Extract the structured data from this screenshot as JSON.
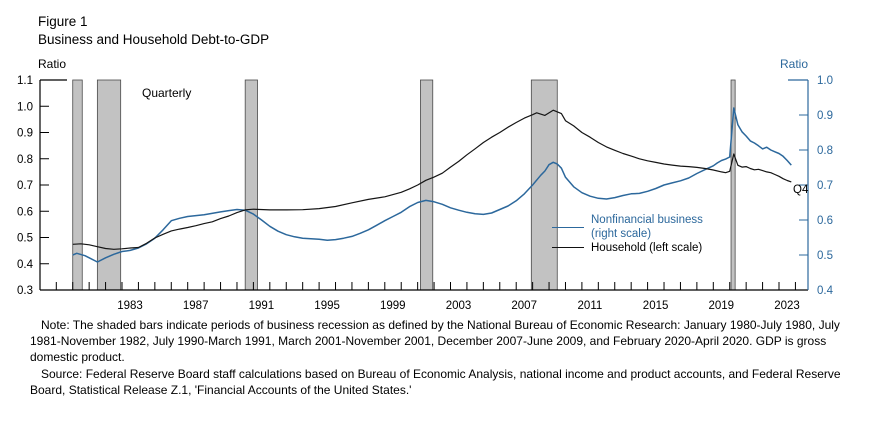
{
  "header": {
    "figure_label": "Figure 1",
    "title": "Business and Household Debt-to-GDP"
  },
  "axes": {
    "left_unit": "Ratio",
    "right_unit": "Ratio"
  },
  "annotations": {
    "frequency": "Quarterly",
    "end_point": "Q4"
  },
  "legend": {
    "business_line1": "Nonfinancial business",
    "business_line2": "(right scale)",
    "household": "Household (left scale)"
  },
  "footnotes": {
    "note": "Note: The shaded bars indicate periods of business recession as defined by the National Bureau of Economic Research: January 1980-July 1980, July 1981-November 1982, July 1990-March 1991, March 2001-November 2001, December 2007-June 2009, and February 2020-April 2020. GDP is gross domestic product.",
    "source": "Source: Federal Reserve Board staff calculations based on Bureau of Economic Analysis, national income and product accounts, and Federal Reserve Board, Statistical Release Z.1, 'Financial Accounts of the United States.'"
  },
  "colors": {
    "business_blue": "#2c689c",
    "household_black": "#151515",
    "recession_fill": "#c2c2c2",
    "recession_edge": "#4a4a4a",
    "axis_black": "#000000"
  },
  "chart_data": {
    "type": "line",
    "title": "Figure 1: Business and Household Debt-to-GDP",
    "frequency": "Quarterly",
    "grid": false,
    "legend_position": "inside-right",
    "left_axis": {
      "label": "Ratio",
      "min": 0.3,
      "max": 1.1,
      "tick_labels": [
        "1.1",
        "1.0",
        "0.9",
        "0.8",
        "0.7",
        "0.6",
        "0.5",
        "0.4",
        "0.3"
      ]
    },
    "right_axis": {
      "label": "Ratio",
      "min": 0.4,
      "max": 1.0,
      "tick_labels": [
        "1.0",
        "0.9",
        "0.8",
        "0.7",
        "0.6",
        "0.5",
        "0.4"
      ]
    },
    "x_axis": {
      "label_years": [
        "1983",
        "1987",
        "1991",
        "1995",
        "1999",
        "2003",
        "2007",
        "2011",
        "2015",
        "2019",
        "2023"
      ],
      "tick_start": 1978,
      "tick_end": 2024,
      "tick_step": 1
    },
    "recessions": [
      {
        "name": "Jan 1980 - Jul 1980",
        "start": 1980.0,
        "end": 1980.58
      },
      {
        "name": "Jul 1981 - Nov 1982",
        "start": 1981.5,
        "end": 1982.92
      },
      {
        "name": "Jul 1990 - Mar 1991",
        "start": 1990.5,
        "end": 1991.25
      },
      {
        "name": "Mar 2001 - Nov 2001",
        "start": 2001.17,
        "end": 2001.92
      },
      {
        "name": "Dec 2007 - Jun 2009",
        "start": 2007.92,
        "end": 2009.5
      },
      {
        "name": "Feb 2020 - Apr 2020",
        "start": 2020.08,
        "end": 2020.33
      }
    ],
    "series": [
      {
        "name": "Nonfinancial business (right scale)",
        "scale": "right",
        "color": "#2c689c",
        "x": [
          1980.0,
          1980.25,
          1980.75,
          1981.0,
          1981.5,
          1982.0,
          1982.5,
          1983.0,
          1983.5,
          1984.0,
          1984.5,
          1985.0,
          1985.5,
          1986.0,
          1986.5,
          1987.0,
          1988.0,
          1989.0,
          1989.5,
          1990.0,
          1990.5,
          1991.0,
          1991.5,
          1992.0,
          1992.5,
          1993.0,
          1993.5,
          1994.0,
          1995.0,
          1995.5,
          1996.0,
          1996.5,
          1997.0,
          1997.5,
          1998.0,
          1998.5,
          1999.0,
          1999.5,
          2000.0,
          2000.5,
          2001.0,
          2001.5,
          2002.0,
          2002.5,
          2003.0,
          2003.5,
          2004.0,
          2004.5,
          2005.0,
          2005.5,
          2006.0,
          2006.5,
          2007.0,
          2007.5,
          2008.0,
          2008.5,
          2008.75,
          2009.0,
          2009.25,
          2009.5,
          2009.75,
          2010.0,
          2010.5,
          2011.0,
          2011.5,
          2012.0,
          2012.5,
          2013.0,
          2013.5,
          2014.0,
          2014.5,
          2015.0,
          2015.5,
          2016.0,
          2016.5,
          2017.0,
          2017.5,
          2018.0,
          2018.5,
          2019.0,
          2019.25,
          2019.5,
          2019.75,
          2020.0,
          2020.25,
          2020.5,
          2020.75,
          2021.0,
          2021.25,
          2021.5,
          2021.75,
          2022.0,
          2022.25,
          2022.5,
          2022.75,
          2023.0,
          2023.25,
          2023.5,
          2023.75
        ],
        "values": [
          0.5,
          0.505,
          0.498,
          0.492,
          0.48,
          0.492,
          0.502,
          0.51,
          0.513,
          0.52,
          0.532,
          0.548,
          0.572,
          0.598,
          0.605,
          0.61,
          0.615,
          0.623,
          0.627,
          0.63,
          0.628,
          0.617,
          0.6,
          0.582,
          0.568,
          0.558,
          0.552,
          0.548,
          0.545,
          0.542,
          0.544,
          0.548,
          0.553,
          0.562,
          0.572,
          0.585,
          0.598,
          0.61,
          0.622,
          0.638,
          0.65,
          0.656,
          0.652,
          0.645,
          0.635,
          0.628,
          0.622,
          0.618,
          0.616,
          0.62,
          0.63,
          0.64,
          0.655,
          0.675,
          0.7,
          0.728,
          0.74,
          0.758,
          0.765,
          0.76,
          0.748,
          0.722,
          0.695,
          0.678,
          0.668,
          0.662,
          0.66,
          0.664,
          0.67,
          0.675,
          0.676,
          0.682,
          0.69,
          0.7,
          0.706,
          0.712,
          0.72,
          0.733,
          0.744,
          0.755,
          0.763,
          0.77,
          0.774,
          0.78,
          0.92,
          0.872,
          0.852,
          0.84,
          0.826,
          0.82,
          0.812,
          0.803,
          0.808,
          0.8,
          0.795,
          0.79,
          0.782,
          0.77,
          0.757
        ]
      },
      {
        "name": "Household (left scale)",
        "scale": "left",
        "color": "#151515",
        "x": [
          1980.0,
          1980.5,
          1981.0,
          1981.5,
          1982.0,
          1982.5,
          1983.0,
          1983.5,
          1984.0,
          1984.5,
          1985.0,
          1985.5,
          1986.0,
          1986.5,
          1987.0,
          1987.5,
          1988.0,
          1988.5,
          1989.0,
          1989.5,
          1990.0,
          1990.5,
          1991.0,
          1992.0,
          1993.0,
          1994.0,
          1995.0,
          1996.0,
          1997.0,
          1998.0,
          1999.0,
          2000.0,
          2000.5,
          2001.0,
          2001.5,
          2002.0,
          2002.5,
          2003.0,
          2003.5,
          2004.0,
          2004.5,
          2005.0,
          2005.5,
          2006.0,
          2006.5,
          2007.0,
          2007.5,
          2008.0,
          2008.25,
          2008.75,
          2009.25,
          2009.75,
          2010.0,
          2010.5,
          2011.0,
          2011.5,
          2012.0,
          2012.5,
          2013.0,
          2013.5,
          2014.0,
          2014.5,
          2015.0,
          2015.5,
          2016.0,
          2016.5,
          2017.0,
          2017.5,
          2018.0,
          2018.5,
          2019.0,
          2019.5,
          2019.75,
          2020.0,
          2020.25,
          2020.5,
          2020.75,
          2021.0,
          2021.25,
          2021.5,
          2021.75,
          2022.0,
          2022.25,
          2022.5,
          2022.75,
          2023.0,
          2023.25,
          2023.5,
          2023.75
        ],
        "values": [
          0.474,
          0.476,
          0.472,
          0.465,
          0.458,
          0.455,
          0.457,
          0.46,
          0.462,
          0.478,
          0.498,
          0.512,
          0.525,
          0.532,
          0.538,
          0.545,
          0.553,
          0.56,
          0.572,
          0.582,
          0.595,
          0.605,
          0.608,
          0.605,
          0.605,
          0.606,
          0.61,
          0.618,
          0.632,
          0.645,
          0.655,
          0.672,
          0.685,
          0.7,
          0.718,
          0.73,
          0.745,
          0.768,
          0.79,
          0.815,
          0.838,
          0.862,
          0.882,
          0.9,
          0.92,
          0.938,
          0.955,
          0.968,
          0.975,
          0.965,
          0.985,
          0.972,
          0.945,
          0.925,
          0.9,
          0.882,
          0.862,
          0.845,
          0.832,
          0.82,
          0.81,
          0.8,
          0.792,
          0.786,
          0.78,
          0.776,
          0.772,
          0.77,
          0.767,
          0.763,
          0.757,
          0.75,
          0.747,
          0.752,
          0.818,
          0.775,
          0.768,
          0.77,
          0.763,
          0.758,
          0.76,
          0.755,
          0.75,
          0.747,
          0.74,
          0.733,
          0.724,
          0.717,
          0.712
        ]
      }
    ]
  }
}
